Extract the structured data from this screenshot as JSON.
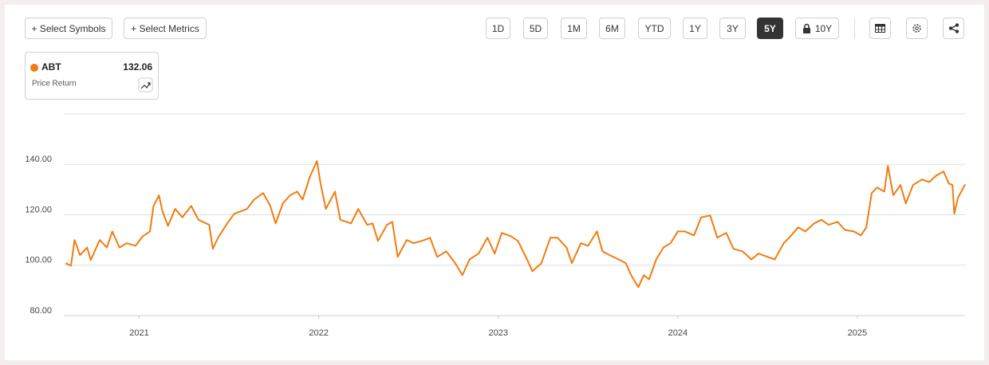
{
  "toolbar": {
    "add_buttons": [
      "+ Select Symbols",
      "+ Select Metrics"
    ],
    "ranges": [
      "1D",
      "5D",
      "1M",
      "6M",
      "YTD",
      "1Y",
      "3Y",
      "5Y",
      "10Y"
    ],
    "active_range": 7
  },
  "legend": {
    "last_value": 132.06,
    "metric": "Price Return"
  },
  "chart_data": {
    "type": "line",
    "x": [
      2020.59,
      2020.62,
      2020.64,
      2020.67,
      2020.71,
      2020.73,
      2020.78,
      2020.82,
      2020.85,
      2020.89,
      2020.93,
      2020.98,
      2021.02,
      2021.06,
      2021.08,
      2021.11,
      2021.13,
      2021.16,
      2021.2,
      2021.24,
      2021.29,
      2021.33,
      2021.39,
      2021.41,
      2021.44,
      2021.49,
      2021.53,
      2021.6,
      2021.64,
      2021.69,
      2021.73,
      2021.76,
      2021.8,
      2021.84,
      2021.88,
      2021.91,
      2021.95,
      2021.99,
      2022.01,
      2022.04,
      2022.09,
      2022.12,
      2022.18,
      2022.22,
      2022.27,
      2022.3,
      2022.33,
      2022.38,
      2022.41,
      2022.44,
      2022.49,
      2022.53,
      2022.59,
      2022.62,
      2022.66,
      2022.71,
      2022.76,
      2022.8,
      2022.84,
      2022.89,
      2022.94,
      2022.98,
      2023.02,
      2023.07,
      2023.11,
      2023.16,
      2023.19,
      2023.24,
      2023.29,
      2023.33,
      2023.38,
      2023.41,
      2023.46,
      2023.5,
      2023.55,
      2023.58,
      2023.62,
      2023.67,
      2023.71,
      2023.74,
      2023.78,
      2023.81,
      2023.84,
      2023.88,
      2023.92,
      2023.96,
      2024.0,
      2024.04,
      2024.09,
      2024.13,
      2024.18,
      2024.22,
      2024.27,
      2024.31,
      2024.36,
      2024.41,
      2024.45,
      2024.5,
      2024.54,
      2024.59,
      2024.62,
      2024.67,
      2024.71,
      2024.76,
      2024.8,
      2024.84,
      2024.89,
      2024.93,
      2024.98,
      2025.02,
      2025.05,
      2025.08,
      2025.11,
      2025.15,
      2025.17,
      2025.2,
      2025.24,
      2025.27,
      2025.31,
      2025.36,
      2025.4,
      2025.44,
      2025.48,
      2025.51,
      2025.53,
      2025.54,
      2025.56,
      2025.6
    ],
    "series": [
      {
        "name": "ABT",
        "color": "#f07c10",
        "values": [
          100.8,
          99.8,
          110,
          104,
          107,
          102,
          110,
          107,
          113.4,
          107,
          108.7,
          107.7,
          111.5,
          113.4,
          123.5,
          127.7,
          121.3,
          115.6,
          122.3,
          119,
          123.5,
          118,
          116,
          106.5,
          111,
          116.6,
          120.4,
          122.3,
          126,
          128.6,
          123.5,
          116.6,
          124.5,
          127.7,
          129.2,
          126,
          135,
          141.3,
          132.4,
          122.3,
          129.2,
          118,
          116.6,
          122.3,
          116,
          116.6,
          109.6,
          116,
          117.2,
          103.3,
          110,
          108.7,
          110,
          110.9,
          103.3,
          105.5,
          100.8,
          96,
          102.3,
          104.6,
          110.9,
          104.6,
          112.8,
          111.5,
          109.6,
          102.3,
          97.6,
          100.8,
          110.9,
          110.9,
          107,
          100.8,
          108.7,
          107.7,
          113.4,
          105.5,
          104,
          102.3,
          100.8,
          96,
          91.3,
          96,
          94.4,
          102.3,
          107,
          108.7,
          113.4,
          113.4,
          111.8,
          119,
          119.7,
          110.9,
          112.8,
          106.5,
          105.5,
          102.3,
          104.6,
          103.3,
          102.3,
          108.7,
          110.9,
          115,
          113.4,
          116.6,
          118,
          116,
          117.2,
          114,
          113.4,
          111.8,
          115,
          128.6,
          130.8,
          129.2,
          139.4,
          127.7,
          131.8,
          124.5,
          131.8,
          134,
          133,
          135.6,
          137.2,
          132.4,
          131.8,
          120.4,
          126.7,
          132.06
        ]
      }
    ],
    "xlim": [
      2020.58,
      2025.6
    ],
    "xticks": [
      2021,
      2022,
      2023,
      2024,
      2025
    ],
    "ylim": [
      80,
      160
    ],
    "yticks": [
      {
        "value": 80,
        "label": "80.00"
      },
      {
        "value": 100,
        "label": "100.00"
      },
      {
        "value": 120,
        "label": "120.00"
      },
      {
        "value": 140,
        "label": "140.00"
      }
    ],
    "grid": true
  }
}
